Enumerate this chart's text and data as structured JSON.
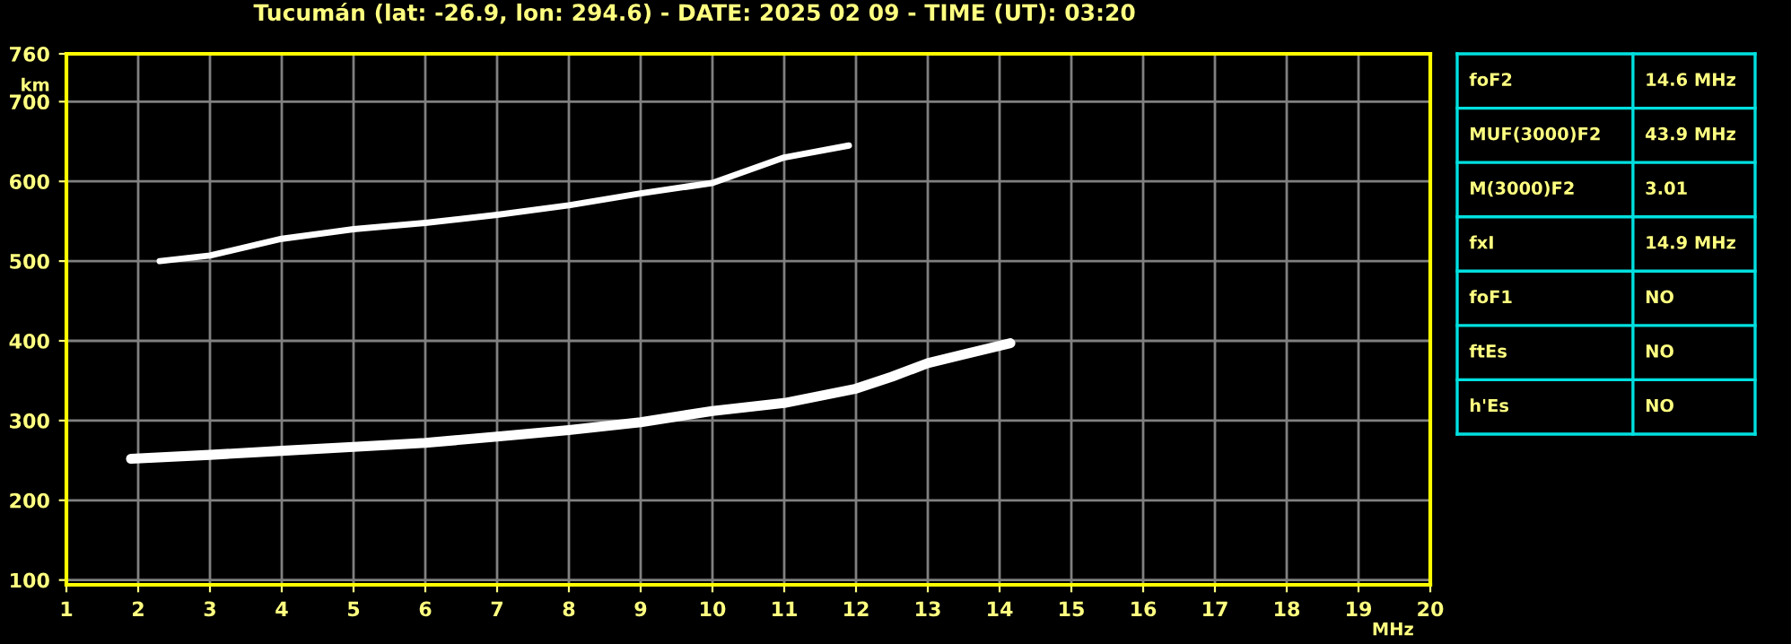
{
  "chart_data": [
    {
      "type": "line",
      "title": "Tucumán (lat: -26.9, lon: 294.6) - DATE: 2025 02 09 - TIME (UT): 03:20",
      "xlabel": "MHz",
      "ylabel": "km",
      "xlim": [
        1,
        20
      ],
      "ylim": [
        94,
        760
      ],
      "xticks": [
        1,
        2,
        3,
        4,
        5,
        6,
        7,
        8,
        9,
        10,
        11,
        12,
        13,
        14,
        15,
        16,
        17,
        18,
        19,
        20
      ],
      "yticks": [
        100,
        200,
        300,
        400,
        500,
        600,
        700,
        760
      ],
      "grid": true,
      "marker": "none",
      "line_style": "solid",
      "series": [
        {
          "color": "#ffffff",
          "x": [
            1.9,
            3,
            4,
            5,
            6,
            7,
            8,
            9,
            10,
            11,
            12,
            12.5,
            13,
            13.5,
            14.15
          ],
          "values": [
            252,
            257,
            262,
            267,
            272,
            280,
            288,
            298,
            312,
            322,
            340,
            355,
            372,
            383,
            397
          ]
        },
        {
          "color": "#ffffff",
          "x": [
            2.3,
            3,
            4,
            5,
            6,
            7,
            8,
            9,
            10,
            11,
            11.9
          ],
          "values": [
            500,
            507,
            528,
            540,
            548,
            558,
            570,
            585,
            598,
            630,
            645
          ]
        }
      ]
    },
    {
      "type": "other",
      "annotations": [
        "foF2",
        "14.6 MHz",
        "MUF(3000)F2",
        "43.9 MHz",
        "M(3000)F2",
        "3.01",
        "fxI",
        "14.9 MHz",
        "foF1",
        "NO",
        "ftEs",
        "NO",
        "h'Es",
        "NO"
      ]
    }
  ]
}
